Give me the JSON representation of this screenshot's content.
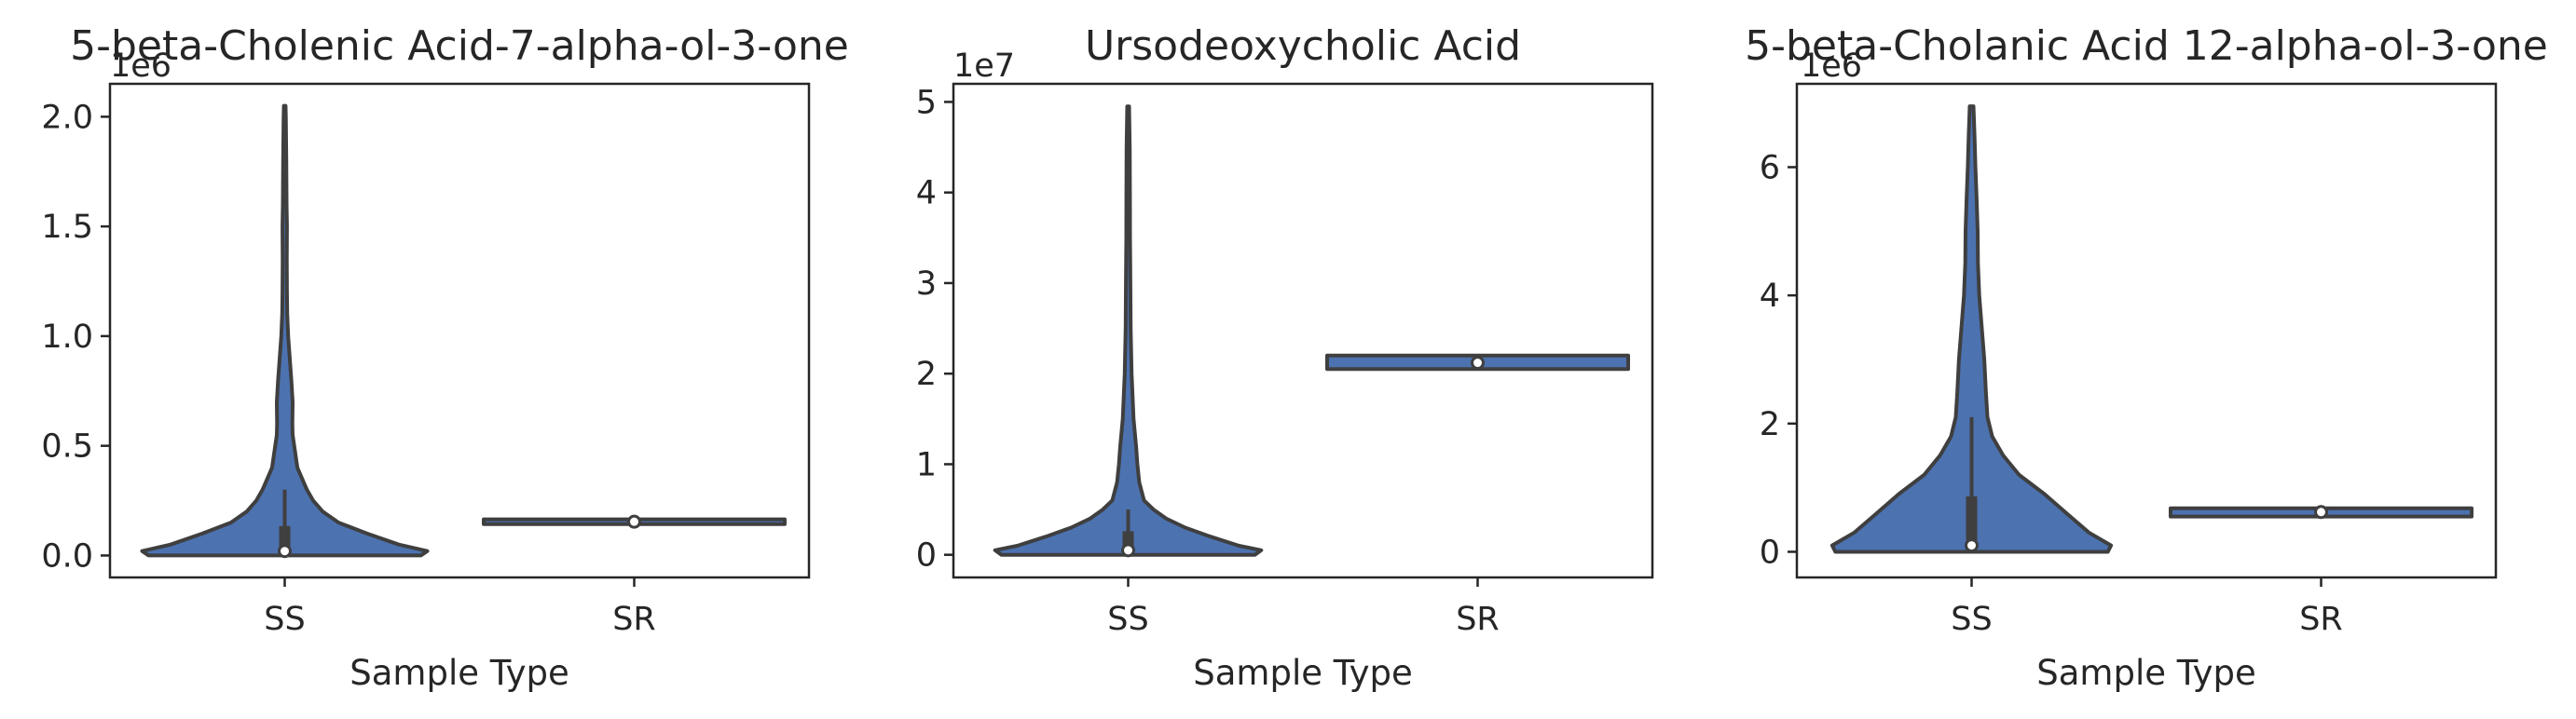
{
  "colors": {
    "violin": "#4c72b0",
    "edge": "#3f3f3f",
    "axis": "#262626",
    "median": "#ffffff"
  },
  "chart_data": [
    {
      "type": "violin",
      "title": "5-beta-Cholenic Acid-7-alpha-ol-3-one",
      "xlabel": "Sample Type",
      "ylabel": "",
      "offset_label": "1e6",
      "categories": [
        "SS",
        "SR"
      ],
      "ylim": [
        -0.1,
        2.15
      ],
      "yticks": [
        0.0,
        0.5,
        1.0,
        1.5,
        2.0
      ],
      "ytick_labels": [
        "0.0",
        "0.5",
        "1.0",
        "1.5",
        "2.0"
      ],
      "grid": false,
      "violins": [
        {
          "category": "SS",
          "min": 0.0,
          "max": 2.05,
          "box": {
            "whisker_low": 0.0,
            "q1": 0.0,
            "median": 0.02,
            "q3": 0.13,
            "whisker_high": 0.3
          },
          "density": [
            [
              0.0,
              0.86
            ],
            [
              0.02,
              0.9
            ],
            [
              0.05,
              0.72
            ],
            [
              0.1,
              0.52
            ],
            [
              0.15,
              0.34
            ],
            [
              0.2,
              0.24
            ],
            [
              0.25,
              0.18
            ],
            [
              0.3,
              0.14
            ],
            [
              0.4,
              0.08
            ],
            [
              0.5,
              0.06
            ],
            [
              0.55,
              0.05
            ],
            [
              0.6,
              0.048
            ],
            [
              0.7,
              0.05
            ],
            [
              0.8,
              0.042
            ],
            [
              0.9,
              0.032
            ],
            [
              1.0,
              0.022
            ],
            [
              1.1,
              0.016
            ],
            [
              1.2,
              0.014
            ],
            [
              1.35,
              0.013
            ],
            [
              1.5,
              0.014
            ],
            [
              1.6,
              0.012
            ],
            [
              1.8,
              0.01
            ],
            [
              2.0,
              0.007
            ],
            [
              2.05,
              0.005
            ]
          ]
        },
        {
          "category": "SR",
          "min": 0.143,
          "max": 0.165,
          "box": {
            "whisker_low": 0.148,
            "q1": 0.151,
            "median": 0.154,
            "q3": 0.158,
            "whisker_high": 0.162
          },
          "density": [
            [
              0.143,
              0.95
            ],
            [
              0.165,
              0.95
            ]
          ]
        }
      ]
    },
    {
      "type": "violin",
      "title": "Ursodeoxycholic Acid",
      "xlabel": "Sample Type",
      "ylabel": "",
      "offset_label": "1e7",
      "categories": [
        "SS",
        "SR"
      ],
      "ylim": [
        -0.25,
        5.2
      ],
      "yticks": [
        0,
        1,
        2,
        3,
        4,
        5
      ],
      "ytick_labels": [
        "0",
        "1",
        "2",
        "3",
        "4",
        "5"
      ],
      "grid": false,
      "violins": [
        {
          "category": "SS",
          "min": 0.0,
          "max": 4.95,
          "box": {
            "whisker_low": 0.0,
            "q1": 0.02,
            "median": 0.05,
            "q3": 0.25,
            "whisker_high": 0.5
          },
          "density": [
            [
              0.0,
              0.8
            ],
            [
              0.05,
              0.84
            ],
            [
              0.1,
              0.7
            ],
            [
              0.2,
              0.52
            ],
            [
              0.3,
              0.36
            ],
            [
              0.4,
              0.24
            ],
            [
              0.5,
              0.16
            ],
            [
              0.6,
              0.1
            ],
            [
              0.8,
              0.07
            ],
            [
              1.0,
              0.058
            ],
            [
              1.2,
              0.05
            ],
            [
              1.5,
              0.034
            ],
            [
              2.0,
              0.022
            ],
            [
              2.5,
              0.016
            ],
            [
              3.0,
              0.014
            ],
            [
              3.5,
              0.012
            ],
            [
              4.0,
              0.011
            ],
            [
              4.5,
              0.01
            ],
            [
              4.95,
              0.006
            ]
          ]
        },
        {
          "category": "SR",
          "min": 2.05,
          "max": 2.2,
          "box": {
            "whisker_low": 2.08,
            "q1": 2.1,
            "median": 2.12,
            "q3": 2.15,
            "whisker_high": 2.18
          },
          "density": [
            [
              2.05,
              0.95
            ],
            [
              2.2,
              0.95
            ]
          ]
        }
      ]
    },
    {
      "type": "violin",
      "title": "5-beta-Cholanic Acid 12-alpha-ol-3-one",
      "xlabel": "Sample Type",
      "ylabel": "",
      "offset_label": "1e6",
      "categories": [
        "SS",
        "SR"
      ],
      "ylim": [
        -0.4,
        7.3
      ],
      "yticks": [
        0,
        2,
        4,
        6
      ],
      "ytick_labels": [
        "0",
        "2",
        "4",
        "6"
      ],
      "grid": false,
      "violins": [
        {
          "category": "SS",
          "min": 0.0,
          "max": 6.95,
          "box": {
            "whisker_low": 0.0,
            "q1": 0.05,
            "median": 0.1,
            "q3": 0.85,
            "whisker_high": 2.1
          },
          "density": [
            [
              0.0,
              0.86
            ],
            [
              0.1,
              0.88
            ],
            [
              0.3,
              0.74
            ],
            [
              0.6,
              0.6
            ],
            [
              0.9,
              0.46
            ],
            [
              1.2,
              0.3
            ],
            [
              1.5,
              0.2
            ],
            [
              1.8,
              0.13
            ],
            [
              2.1,
              0.1
            ],
            [
              2.5,
              0.09
            ],
            [
              3.0,
              0.08
            ],
            [
              3.5,
              0.064
            ],
            [
              4.0,
              0.048
            ],
            [
              4.5,
              0.04
            ],
            [
              5.0,
              0.038
            ],
            [
              5.5,
              0.032
            ],
            [
              6.0,
              0.024
            ],
            [
              6.5,
              0.018
            ],
            [
              6.95,
              0.012
            ]
          ]
        },
        {
          "category": "SR",
          "min": 0.55,
          "max": 0.68,
          "box": {
            "whisker_low": 0.57,
            "q1": 0.59,
            "median": 0.62,
            "q3": 0.65,
            "whisker_high": 0.67
          },
          "density": [
            [
              0.55,
              0.95
            ],
            [
              0.68,
              0.95
            ]
          ]
        }
      ]
    }
  ]
}
